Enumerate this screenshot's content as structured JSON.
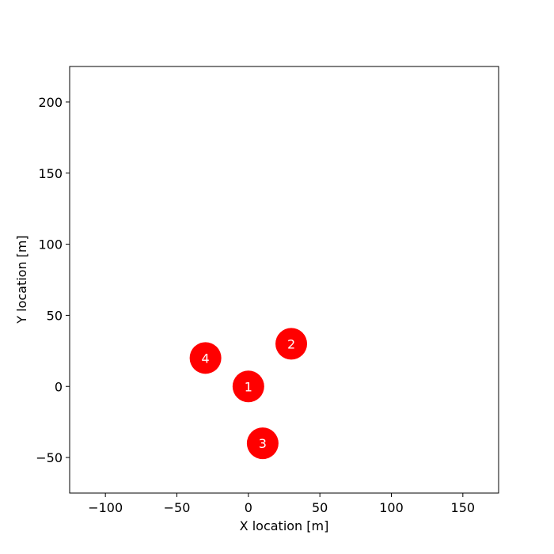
{
  "chart_data": {
    "type": "scatter",
    "title": "",
    "xlabel": "X location [m]",
    "ylabel": "Y location [m]",
    "xlim": [
      -125,
      175
    ],
    "ylim": [
      -75,
      225
    ],
    "xticks": [
      -100,
      -50,
      0,
      50,
      100,
      150
    ],
    "yticks": [
      -50,
      0,
      50,
      100,
      150,
      200
    ],
    "grid": false,
    "marker_color": "#ff0000",
    "label_color": "#ffffff",
    "points": [
      {
        "x": 0,
        "y": 0,
        "label": "1"
      },
      {
        "x": 30,
        "y": 30,
        "label": "2"
      },
      {
        "x": 10,
        "y": -40,
        "label": "3"
      },
      {
        "x": -30,
        "y": 20,
        "label": "4"
      }
    ]
  }
}
